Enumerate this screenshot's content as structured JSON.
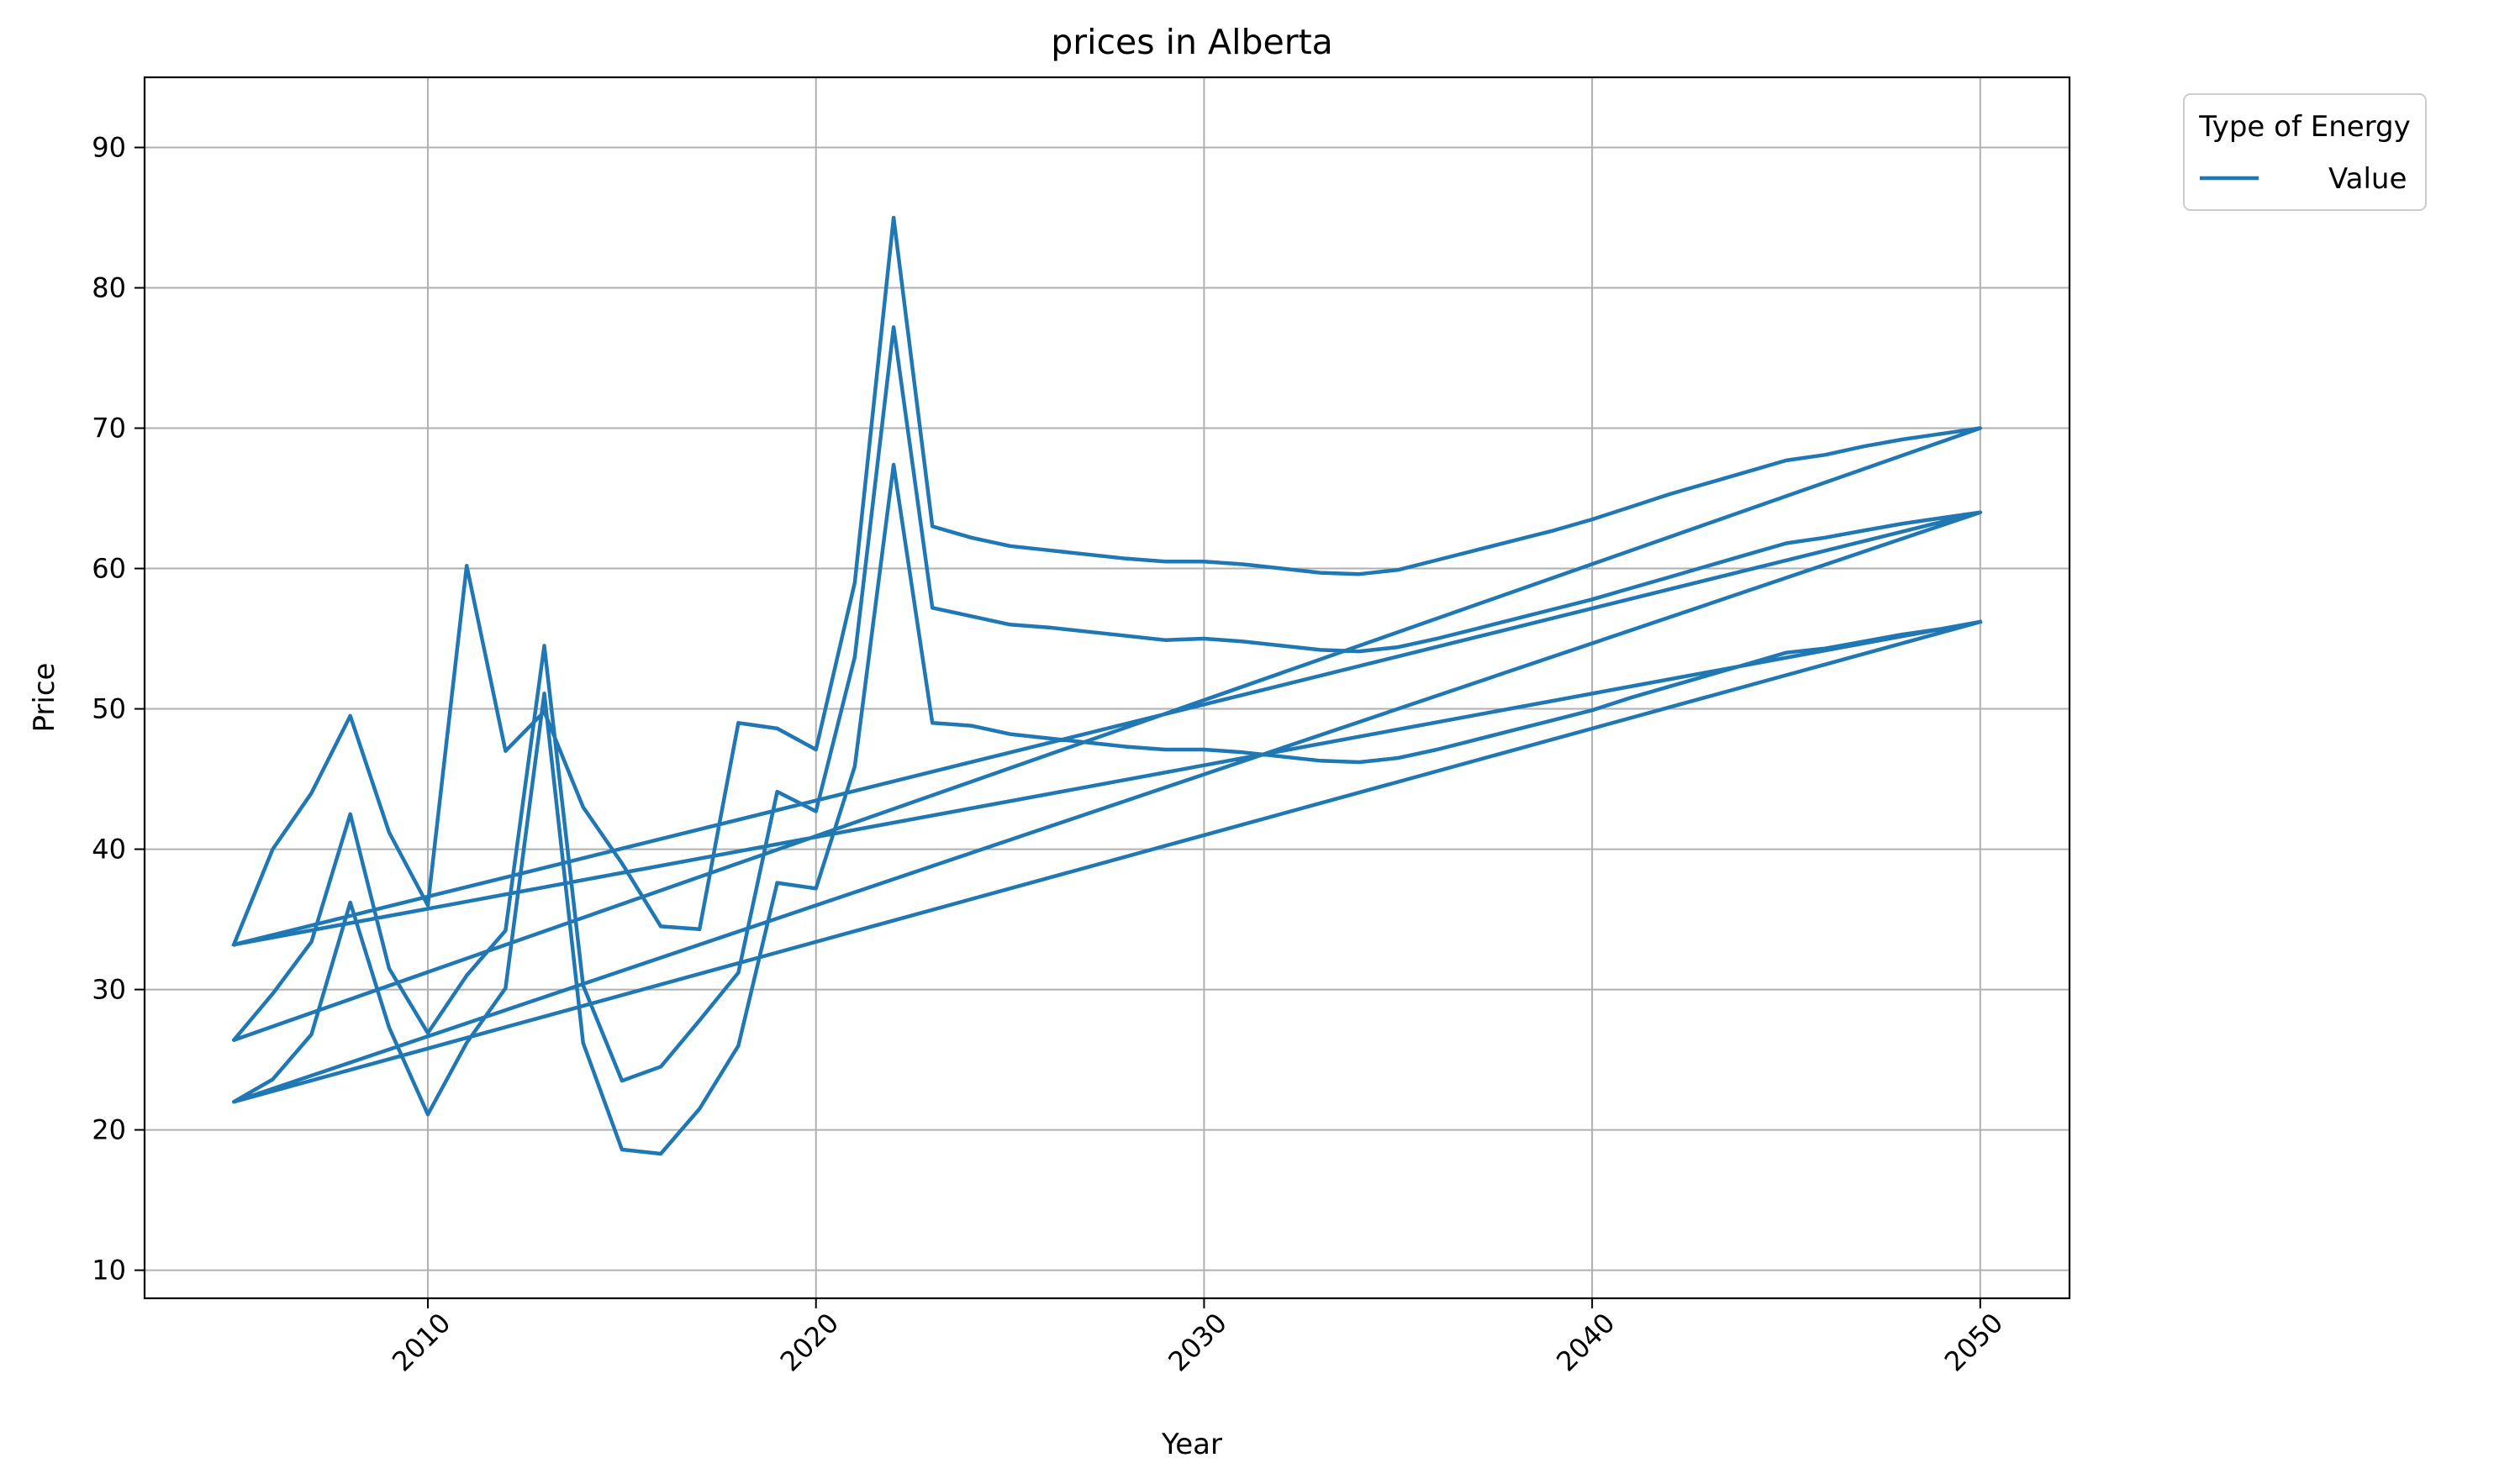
{
  "chart_data": {
    "type": "line",
    "title": "prices in Alberta",
    "xlabel": "Year",
    "ylabel": "Price",
    "xlim": [
      2002.7,
      2052.3
    ],
    "ylim": [
      8,
      95
    ],
    "xticks": [
      2010,
      2020,
      2030,
      2040,
      2050
    ],
    "yticks": [
      10,
      20,
      30,
      40,
      50,
      60,
      70,
      80,
      90
    ],
    "grid": true,
    "legend": {
      "title": "Type of Energy",
      "placement": "outside-top-right",
      "entries": [
        "Value"
      ]
    },
    "color": "#1f77b4",
    "series": [
      {
        "name": "Value",
        "points": [
          [
            2005,
            33.2
          ],
          [
            2006,
            40.0
          ],
          [
            2007,
            44.0
          ],
          [
            2008,
            49.5
          ],
          [
            2009,
            41.2
          ],
          [
            2010,
            36.0
          ],
          [
            2011,
            60.2
          ],
          [
            2012,
            47.0
          ],
          [
            2013,
            49.8
          ],
          [
            2014,
            43.0
          ],
          [
            2015,
            39.0
          ],
          [
            2016,
            34.5
          ],
          [
            2017,
            34.3
          ],
          [
            2018,
            49.0
          ],
          [
            2019,
            48.6
          ],
          [
            2020,
            47.1
          ],
          [
            2021,
            59.0
          ],
          [
            2022,
            85.0
          ],
          [
            2023,
            63.0
          ],
          [
            2024,
            62.2
          ],
          [
            2025,
            61.6
          ],
          [
            2026,
            61.3
          ],
          [
            2027,
            61.0
          ],
          [
            2028,
            60.7
          ],
          [
            2029,
            60.5
          ],
          [
            2030,
            60.5
          ],
          [
            2031,
            60.3
          ],
          [
            2032,
            60.0
          ],
          [
            2033,
            59.7
          ],
          [
            2034,
            59.6
          ],
          [
            2035,
            59.9
          ],
          [
            2036,
            60.6
          ],
          [
            2037,
            61.3
          ],
          [
            2038,
            62.0
          ],
          [
            2039,
            62.7
          ],
          [
            2040,
            63.5
          ],
          [
            2041,
            64.4
          ],
          [
            2042,
            65.3
          ],
          [
            2043,
            66.1
          ],
          [
            2044,
            66.9
          ],
          [
            2045,
            67.7
          ],
          [
            2046,
            68.1
          ],
          [
            2047,
            68.7
          ],
          [
            2048,
            69.2
          ],
          [
            2049,
            69.6
          ],
          [
            2050,
            70.0
          ],
          [
            2005,
            26.4
          ],
          [
            2006,
            29.7
          ],
          [
            2007,
            33.4
          ],
          [
            2008,
            42.5
          ],
          [
            2009,
            31.5
          ],
          [
            2010,
            26.9
          ],
          [
            2011,
            31.0
          ],
          [
            2012,
            34.2
          ],
          [
            2013,
            54.5
          ],
          [
            2014,
            30.3
          ],
          [
            2015,
            23.5
          ],
          [
            2016,
            24.5
          ],
          [
            2017,
            27.8
          ],
          [
            2018,
            31.2
          ],
          [
            2019,
            44.1
          ],
          [
            2020,
            42.7
          ],
          [
            2021,
            53.7
          ],
          [
            2022,
            77.2
          ],
          [
            2023,
            57.2
          ],
          [
            2024,
            56.6
          ],
          [
            2025,
            56.0
          ],
          [
            2026,
            55.8
          ],
          [
            2027,
            55.5
          ],
          [
            2028,
            55.2
          ],
          [
            2029,
            54.9
          ],
          [
            2030,
            55.0
          ],
          [
            2031,
            54.8
          ],
          [
            2032,
            54.5
          ],
          [
            2033,
            54.2
          ],
          [
            2034,
            54.1
          ],
          [
            2035,
            54.4
          ],
          [
            2036,
            55.0
          ],
          [
            2037,
            55.7
          ],
          [
            2038,
            56.4
          ],
          [
            2039,
            57.1
          ],
          [
            2040,
            57.8
          ],
          [
            2041,
            58.6
          ],
          [
            2042,
            59.4
          ],
          [
            2043,
            60.2
          ],
          [
            2044,
            61.0
          ],
          [
            2045,
            61.8
          ],
          [
            2046,
            62.2
          ],
          [
            2047,
            62.7
          ],
          [
            2048,
            63.2
          ],
          [
            2049,
            63.6
          ],
          [
            2050,
            64.0
          ],
          [
            2005,
            22.0
          ],
          [
            2006,
            23.6
          ],
          [
            2007,
            26.8
          ],
          [
            2008,
            36.2
          ],
          [
            2009,
            27.3
          ],
          [
            2010,
            21.1
          ],
          [
            2011,
            26.2
          ],
          [
            2012,
            30.1
          ],
          [
            2013,
            51.1
          ],
          [
            2014,
            26.2
          ],
          [
            2015,
            18.6
          ],
          [
            2016,
            18.3
          ],
          [
            2017,
            21.5
          ],
          [
            2018,
            26.0
          ],
          [
            2019,
            37.6
          ],
          [
            2020,
            37.2
          ],
          [
            2021,
            45.9
          ],
          [
            2022,
            67.4
          ],
          [
            2023,
            49.0
          ],
          [
            2024,
            48.8
          ],
          [
            2025,
            48.2
          ],
          [
            2026,
            47.9
          ],
          [
            2027,
            47.6
          ],
          [
            2028,
            47.3
          ],
          [
            2029,
            47.1
          ],
          [
            2030,
            47.1
          ],
          [
            2031,
            46.9
          ],
          [
            2032,
            46.6
          ],
          [
            2033,
            46.3
          ],
          [
            2034,
            46.2
          ],
          [
            2035,
            46.5
          ],
          [
            2036,
            47.1
          ],
          [
            2037,
            47.8
          ],
          [
            2038,
            48.5
          ],
          [
            2039,
            49.2
          ],
          [
            2040,
            49.9
          ],
          [
            2041,
            50.8
          ],
          [
            2042,
            51.6
          ],
          [
            2043,
            52.4
          ],
          [
            2044,
            53.2
          ],
          [
            2045,
            54.0
          ],
          [
            2046,
            54.3
          ],
          [
            2047,
            54.8
          ],
          [
            2048,
            55.3
          ],
          [
            2049,
            55.7
          ],
          [
            2050,
            56.2
          ],
          [
            2005,
            33.2
          ],
          [
            2050,
            64.0
          ],
          [
            2005,
            22.0
          ],
          [
            2050,
            56.2
          ]
        ]
      }
    ]
  }
}
